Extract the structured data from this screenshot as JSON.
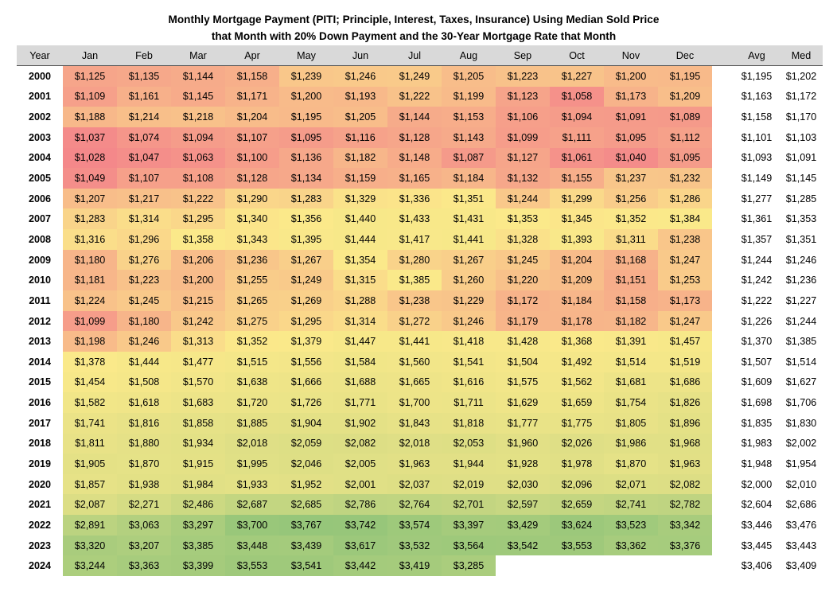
{
  "title_line1": "Monthly Mortgage Payment (PITI; Principle, Interest, Taxes, Insurance) Using Median Sold Price",
  "title_line2": "that Month with 20% Down Payment and the 30-Year Mortgage Rate that Month",
  "colors": {
    "low": "#f4888a",
    "mid": "#fbe98a",
    "high": "#96c67a",
    "header_bg": "#d9d9d9"
  },
  "chart_data": {
    "type": "heatmap",
    "title": "Monthly Mortgage Payment (PITI; Principle, Interest, Taxes, Insurance) Using Median Sold Price that Month with 20% Down Payment and the 30-Year Mortgage Rate that Month",
    "row_header": "Year",
    "columns": [
      "Jan",
      "Feb",
      "Mar",
      "Apr",
      "May",
      "Jun",
      "Jul",
      "Aug",
      "Sep",
      "Oct",
      "Nov",
      "Dec"
    ],
    "summary_columns": [
      "Avg",
      "Med"
    ],
    "rows": [
      {
        "year": "2000",
        "values": [
          "$1,125",
          "$1,135",
          "$1,144",
          "$1,158",
          "$1,239",
          "$1,246",
          "$1,249",
          "$1,205",
          "$1,223",
          "$1,227",
          "$1,200",
          "$1,195"
        ],
        "avg": "$1,195",
        "med": "$1,202"
      },
      {
        "year": "2001",
        "values": [
          "$1,109",
          "$1,161",
          "$1,145",
          "$1,171",
          "$1,200",
          "$1,193",
          "$1,222",
          "$1,199",
          "$1,123",
          "$1,058",
          "$1,173",
          "$1,209"
        ],
        "avg": "$1,163",
        "med": "$1,172"
      },
      {
        "year": "2002",
        "values": [
          "$1,188",
          "$1,214",
          "$1,218",
          "$1,204",
          "$1,195",
          "$1,205",
          "$1,144",
          "$1,153",
          "$1,106",
          "$1,094",
          "$1,091",
          "$1,089"
        ],
        "avg": "$1,158",
        "med": "$1,170"
      },
      {
        "year": "2003",
        "values": [
          "$1,037",
          "$1,074",
          "$1,094",
          "$1,107",
          "$1,095",
          "$1,116",
          "$1,128",
          "$1,143",
          "$1,099",
          "$1,111",
          "$1,095",
          "$1,112"
        ],
        "avg": "$1,101",
        "med": "$1,103"
      },
      {
        "year": "2004",
        "values": [
          "$1,028",
          "$1,047",
          "$1,063",
          "$1,100",
          "$1,136",
          "$1,182",
          "$1,148",
          "$1,087",
          "$1,127",
          "$1,061",
          "$1,040",
          "$1,095"
        ],
        "avg": "$1,093",
        "med": "$1,091"
      },
      {
        "year": "2005",
        "values": [
          "$1,049",
          "$1,107",
          "$1,108",
          "$1,128",
          "$1,134",
          "$1,159",
          "$1,165",
          "$1,184",
          "$1,132",
          "$1,155",
          "$1,237",
          "$1,232"
        ],
        "avg": "$1,149",
        "med": "$1,145"
      },
      {
        "year": "2006",
        "values": [
          "$1,207",
          "$1,217",
          "$1,222",
          "$1,290",
          "$1,283",
          "$1,329",
          "$1,336",
          "$1,351",
          "$1,244",
          "$1,299",
          "$1,256",
          "$1,286"
        ],
        "avg": "$1,277",
        "med": "$1,285"
      },
      {
        "year": "2007",
        "values": [
          "$1,283",
          "$1,314",
          "$1,295",
          "$1,340",
          "$1,356",
          "$1,440",
          "$1,433",
          "$1,431",
          "$1,353",
          "$1,345",
          "$1,352",
          "$1,384"
        ],
        "avg": "$1,361",
        "med": "$1,353"
      },
      {
        "year": "2008",
        "values": [
          "$1,316",
          "$1,296",
          "$1,358",
          "$1,343",
          "$1,395",
          "$1,444",
          "$1,417",
          "$1,441",
          "$1,328",
          "$1,393",
          "$1,311",
          "$1,238"
        ],
        "avg": "$1,357",
        "med": "$1,351"
      },
      {
        "year": "2009",
        "values": [
          "$1,180",
          "$1,276",
          "$1,206",
          "$1,236",
          "$1,267",
          "$1,354",
          "$1,280",
          "$1,267",
          "$1,245",
          "$1,204",
          "$1,168",
          "$1,247"
        ],
        "avg": "$1,244",
        "med": "$1,246"
      },
      {
        "year": "2010",
        "values": [
          "$1,181",
          "$1,223",
          "$1,200",
          "$1,255",
          "$1,249",
          "$1,315",
          "$1,385",
          "$1,260",
          "$1,220",
          "$1,209",
          "$1,151",
          "$1,253"
        ],
        "avg": "$1,242",
        "med": "$1,236"
      },
      {
        "year": "2011",
        "values": [
          "$1,224",
          "$1,245",
          "$1,215",
          "$1,265",
          "$1,269",
          "$1,288",
          "$1,238",
          "$1,229",
          "$1,172",
          "$1,184",
          "$1,158",
          "$1,173"
        ],
        "avg": "$1,222",
        "med": "$1,227"
      },
      {
        "year": "2012",
        "values": [
          "$1,099",
          "$1,180",
          "$1,242",
          "$1,275",
          "$1,295",
          "$1,314",
          "$1,272",
          "$1,246",
          "$1,179",
          "$1,178",
          "$1,182",
          "$1,247"
        ],
        "avg": "$1,226",
        "med": "$1,244"
      },
      {
        "year": "2013",
        "values": [
          "$1,198",
          "$1,246",
          "$1,313",
          "$1,352",
          "$1,379",
          "$1,447",
          "$1,441",
          "$1,418",
          "$1,428",
          "$1,368",
          "$1,391",
          "$1,457"
        ],
        "avg": "$1,370",
        "med": "$1,385"
      },
      {
        "year": "2014",
        "values": [
          "$1,378",
          "$1,444",
          "$1,477",
          "$1,515",
          "$1,556",
          "$1,584",
          "$1,560",
          "$1,541",
          "$1,504",
          "$1,492",
          "$1,514",
          "$1,519"
        ],
        "avg": "$1,507",
        "med": "$1,514"
      },
      {
        "year": "2015",
        "values": [
          "$1,454",
          "$1,508",
          "$1,570",
          "$1,638",
          "$1,666",
          "$1,688",
          "$1,665",
          "$1,616",
          "$1,575",
          "$1,562",
          "$1,681",
          "$1,686"
        ],
        "avg": "$1,609",
        "med": "$1,627"
      },
      {
        "year": "2016",
        "values": [
          "$1,582",
          "$1,618",
          "$1,683",
          "$1,720",
          "$1,726",
          "$1,771",
          "$1,700",
          "$1,711",
          "$1,629",
          "$1,659",
          "$1,754",
          "$1,826"
        ],
        "avg": "$1,698",
        "med": "$1,706"
      },
      {
        "year": "2017",
        "values": [
          "$1,741",
          "$1,816",
          "$1,858",
          "$1,885",
          "$1,904",
          "$1,902",
          "$1,843",
          "$1,818",
          "$1,777",
          "$1,775",
          "$1,805",
          "$1,896"
        ],
        "avg": "$1,835",
        "med": "$1,830"
      },
      {
        "year": "2018",
        "values": [
          "$1,811",
          "$1,880",
          "$1,934",
          "$2,018",
          "$2,059",
          "$2,082",
          "$2,018",
          "$2,053",
          "$1,960",
          "$2,026",
          "$1,986",
          "$1,968"
        ],
        "avg": "$1,983",
        "med": "$2,002"
      },
      {
        "year": "2019",
        "values": [
          "$1,905",
          "$1,870",
          "$1,915",
          "$1,995",
          "$2,046",
          "$2,005",
          "$1,963",
          "$1,944",
          "$1,928",
          "$1,978",
          "$1,870",
          "$1,963"
        ],
        "avg": "$1,948",
        "med": "$1,954"
      },
      {
        "year": "2020",
        "values": [
          "$1,857",
          "$1,938",
          "$1,984",
          "$1,933",
          "$1,952",
          "$2,001",
          "$2,037",
          "$2,019",
          "$2,030",
          "$2,096",
          "$2,071",
          "$2,082"
        ],
        "avg": "$2,000",
        "med": "$2,010"
      },
      {
        "year": "2021",
        "values": [
          "$2,087",
          "$2,271",
          "$2,486",
          "$2,687",
          "$2,685",
          "$2,786",
          "$2,764",
          "$2,701",
          "$2,597",
          "$2,659",
          "$2,741",
          "$2,782"
        ],
        "avg": "$2,604",
        "med": "$2,686"
      },
      {
        "year": "2022",
        "values": [
          "$2,891",
          "$3,063",
          "$3,297",
          "$3,700",
          "$3,767",
          "$3,742",
          "$3,574",
          "$3,397",
          "$3,429",
          "$3,624",
          "$3,523",
          "$3,342"
        ],
        "avg": "$3,446",
        "med": "$3,476"
      },
      {
        "year": "2023",
        "values": [
          "$3,320",
          "$3,207",
          "$3,385",
          "$3,448",
          "$3,439",
          "$3,617",
          "$3,532",
          "$3,564",
          "$3,542",
          "$3,553",
          "$3,362",
          "$3,376"
        ],
        "avg": "$3,445",
        "med": "$3,443"
      },
      {
        "year": "2024",
        "values": [
          "$3,244",
          "$3,363",
          "$3,399",
          "$3,553",
          "$3,541",
          "$3,442",
          "$3,419",
          "$3,285",
          "",
          "",
          "",
          ""
        ],
        "avg": "$3,406",
        "med": "$3,409"
      }
    ]
  }
}
